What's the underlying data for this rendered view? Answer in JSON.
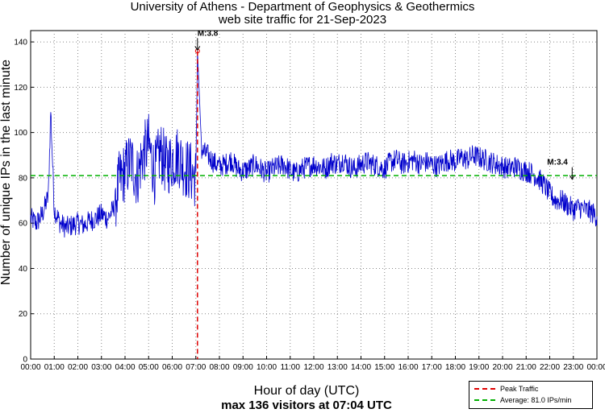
{
  "chart_data": {
    "type": "line",
    "title": "University of Athens - Department of Geophysics & Geothermics",
    "subtitle": "web site traffic for 21-Sep-2023",
    "xlabel": "Hour of day (UTC)",
    "summary": "max 136 visitors at 07:04 UTC",
    "ylabel": "Number of unique IPs in the last minute",
    "ylim": [
      0,
      145
    ],
    "xlim": [
      0,
      24
    ],
    "yticks": [
      0,
      20,
      40,
      60,
      80,
      100,
      120,
      140
    ],
    "xticks": [
      "00:00",
      "01:00",
      "02:00",
      "03:00",
      "04:00",
      "05:00",
      "06:00",
      "07:00",
      "08:00",
      "09:00",
      "10:00",
      "11:00",
      "12:00",
      "13:00",
      "14:00",
      "15:00",
      "16:00",
      "17:00",
      "18:00",
      "19:00",
      "20:00",
      "21:00",
      "22:00",
      "23:00",
      "00:00"
    ],
    "grid": true,
    "series": [
      {
        "name": "unique IPs per minute",
        "color": "#0000cc",
        "x": [
          0,
          0.25,
          0.5,
          0.75,
          0.85,
          1,
          1.25,
          1.5,
          1.75,
          2,
          2.25,
          2.5,
          2.75,
          3,
          3.25,
          3.5,
          3.75,
          4,
          4.25,
          4.5,
          4.75,
          5,
          5.25,
          5.5,
          5.75,
          6,
          6.25,
          6.5,
          6.75,
          7,
          7.07,
          7.25,
          7.5,
          7.75,
          8,
          8.25,
          8.5,
          8.75,
          9,
          9.25,
          9.5,
          9.75,
          10,
          10.25,
          10.5,
          10.75,
          11,
          11.25,
          11.5,
          11.75,
          12,
          12.25,
          12.5,
          12.75,
          13,
          13.25,
          13.5,
          13.75,
          14,
          14.25,
          14.5,
          14.75,
          15,
          15.25,
          15.5,
          15.75,
          16,
          16.25,
          16.5,
          16.75,
          17,
          17.25,
          17.5,
          17.75,
          18,
          18.25,
          18.5,
          18.75,
          19,
          19.25,
          19.5,
          19.75,
          20,
          20.25,
          20.5,
          20.75,
          21,
          21.25,
          21.5,
          21.75,
          22,
          22.25,
          22.5,
          22.75,
          23,
          23.25,
          23.5,
          23.75,
          24
        ],
        "values": [
          62,
          60,
          64,
          72,
          110,
          66,
          60,
          58,
          59,
          60,
          59,
          61,
          62,
          64,
          62,
          66,
          78,
          83,
          88,
          80,
          90,
          95,
          82,
          92,
          85,
          88,
          90,
          85,
          83,
          80,
          136,
          92,
          90,
          87,
          85,
          86,
          88,
          84,
          83,
          84,
          86,
          84,
          82,
          84,
          85,
          86,
          83,
          82,
          84,
          85,
          86,
          85,
          84,
          87,
          86,
          88,
          85,
          84,
          86,
          87,
          86,
          85,
          84,
          87,
          88,
          86,
          87,
          88,
          86,
          87,
          86,
          85,
          87,
          88,
          87,
          89,
          88,
          90,
          89,
          88,
          87,
          86,
          85,
          84,
          85,
          84,
          83,
          82,
          80,
          77,
          73,
          70,
          70,
          68,
          66,
          67,
          66,
          65,
          63
        ]
      }
    ],
    "peak": {
      "x": 7.07,
      "value": 136
    },
    "average": 81.0,
    "annotations": [
      {
        "text": "M:3.8",
        "x": 7.07,
        "y": 136
      },
      {
        "text": "M:3.4",
        "x": 22.95,
        "y": 79
      }
    ],
    "legend": [
      {
        "label": "Peak Traffic",
        "color": "#e00000"
      },
      {
        "label": "Average: 81.0 IPs/min",
        "color": "#00b000"
      }
    ],
    "legend_position": "bottom-right"
  }
}
